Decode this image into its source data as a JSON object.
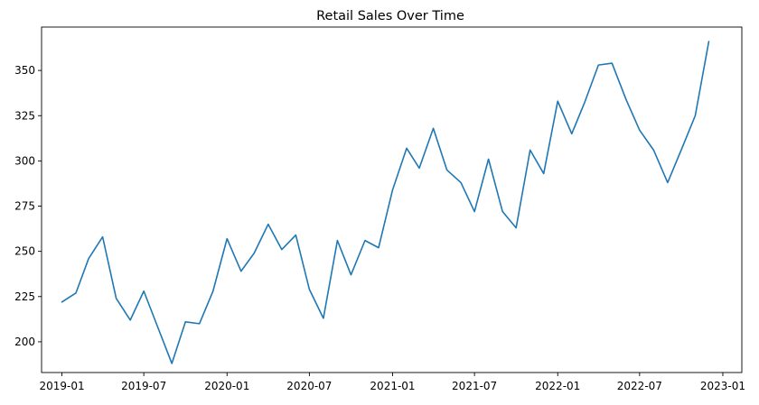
{
  "chart_data": {
    "type": "line",
    "title": "Retail Sales Over Time",
    "xlabel": "",
    "ylabel": "",
    "grid": false,
    "legend": "none",
    "color": "#1f77b4",
    "x_ticks": [
      "2019-01",
      "2019-07",
      "2020-01",
      "2020-07",
      "2021-01",
      "2021-07",
      "2022-01",
      "2022-07",
      "2023-01"
    ],
    "y_ticks": [
      200,
      225,
      250,
      275,
      300,
      325,
      350
    ],
    "xlim": [
      "2018-11-17",
      "2023-02-12"
    ],
    "ylim": [
      183,
      374
    ],
    "series": [
      {
        "x": [
          "2019-01-01",
          "2019-02-01",
          "2019-03-01",
          "2019-04-01",
          "2019-05-01",
          "2019-06-01",
          "2019-07-01",
          "2019-08-01",
          "2019-09-01",
          "2019-10-01",
          "2019-11-01",
          "2019-12-01",
          "2020-01-01",
          "2020-02-01",
          "2020-03-01",
          "2020-04-01",
          "2020-05-01",
          "2020-06-01",
          "2020-07-01",
          "2020-08-01",
          "2020-09-01",
          "2020-10-01",
          "2020-11-01",
          "2020-12-01",
          "2021-01-01",
          "2021-02-01",
          "2021-03-01",
          "2021-04-01",
          "2021-05-01",
          "2021-06-01",
          "2021-07-01",
          "2021-08-01",
          "2021-09-01",
          "2021-10-01",
          "2021-11-01",
          "2021-12-01",
          "2022-01-01",
          "2022-02-01",
          "2022-03-01",
          "2022-04-01",
          "2022-05-01",
          "2022-06-01",
          "2022-07-01",
          "2022-08-01",
          "2022-09-01",
          "2022-10-01",
          "2022-11-01",
          "2022-12-01"
        ],
        "values": [
          222,
          227,
          246,
          258,
          224,
          212,
          228,
          208,
          188,
          211,
          210,
          228,
          257,
          239,
          249,
          265,
          251,
          259,
          229,
          213,
          256,
          237,
          256,
          252,
          284,
          307,
          296,
          318,
          295,
          288,
          272,
          301,
          272,
          263,
          306,
          293,
          333,
          315,
          332,
          353,
          354,
          334,
          317,
          306,
          288,
          306,
          325,
          366
        ]
      }
    ]
  }
}
